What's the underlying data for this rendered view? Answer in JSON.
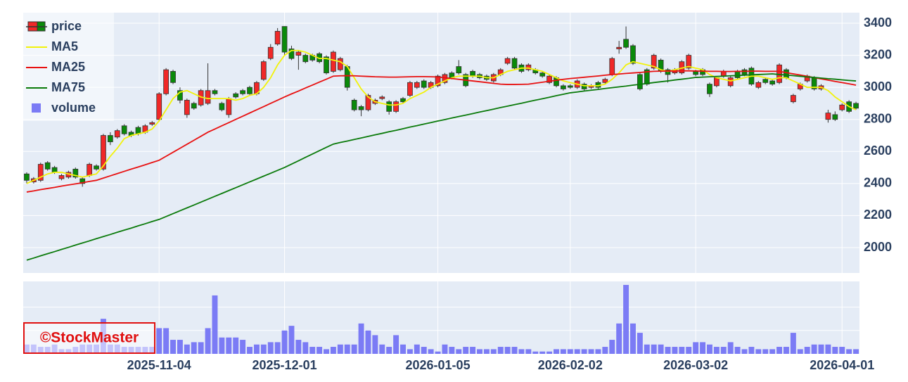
{
  "chart_data": {
    "type": "candlestick",
    "x": [
      "2025-10-06",
      "2025-10-07",
      "2025-10-08",
      "2025-10-09",
      "2025-10-10",
      "2025-10-14",
      "2025-10-15",
      "2025-10-16",
      "2025-10-17",
      "2025-10-20",
      "2025-10-21",
      "2025-10-22",
      "2025-10-23",
      "2025-10-24",
      "2025-10-27",
      "2025-10-28",
      "2025-10-29",
      "2025-10-30",
      "2025-10-31",
      "2025-11-04",
      "2025-11-05",
      "2025-11-06",
      "2025-11-07",
      "2025-11-10",
      "2025-11-11",
      "2025-11-12",
      "2025-11-13",
      "2025-11-14",
      "2025-11-17",
      "2025-11-18",
      "2025-11-19",
      "2025-11-20",
      "2025-11-21",
      "2025-11-25",
      "2025-11-26",
      "2025-11-27",
      "2025-11-28",
      "2025-12-01",
      "2025-12-02",
      "2025-12-03",
      "2025-12-04",
      "2025-12-05",
      "2025-12-08",
      "2025-12-09",
      "2025-12-10",
      "2025-12-11",
      "2025-12-12",
      "2025-12-15",
      "2025-12-16",
      "2025-12-17",
      "2025-12-18",
      "2025-12-19",
      "2025-12-22",
      "2025-12-23",
      "2025-12-24",
      "2025-12-25",
      "2025-12-26",
      "2025-12-29",
      "2025-12-30",
      "2026-01-05",
      "2026-01-06",
      "2026-01-07",
      "2026-01-08",
      "2026-01-09",
      "2026-01-13",
      "2026-01-14",
      "2026-01-15",
      "2026-01-16",
      "2026-01-19",
      "2026-01-20",
      "2026-01-21",
      "2026-01-22",
      "2026-01-23",
      "2026-01-26",
      "2026-01-27",
      "2026-01-28",
      "2026-01-29",
      "2026-01-30",
      "2026-02-02",
      "2026-02-03",
      "2026-02-04",
      "2026-02-05",
      "2026-02-06",
      "2026-02-09",
      "2026-02-10",
      "2026-02-12",
      "2026-02-13",
      "2026-02-16",
      "2026-02-17",
      "2026-02-18",
      "2026-02-19",
      "2026-02-20",
      "2026-02-24",
      "2026-02-25",
      "2026-02-26",
      "2026-02-27",
      "2026-03-02",
      "2026-03-03",
      "2026-03-04",
      "2026-03-05",
      "2026-03-06",
      "2026-03-09",
      "2026-03-10",
      "2026-03-11",
      "2026-03-12",
      "2026-03-13",
      "2026-03-16",
      "2026-03-17",
      "2026-03-18",
      "2026-03-19",
      "2026-03-23",
      "2026-03-24",
      "2026-03-25",
      "2026-03-26",
      "2026-03-27",
      "2026-03-30",
      "2026-03-31",
      "2026-04-01",
      "2026-04-02",
      "2026-04-03"
    ],
    "xticks": [
      "2025-11-04",
      "2025-12-01",
      "2026-01-05",
      "2026-02-02",
      "2026-03-02",
      "2026-04-01"
    ],
    "price": {
      "name": "price",
      "increasing_color": "#f02828",
      "decreasing_color": "#0a8a0a",
      "open": [
        2460,
        2410,
        2420,
        2530,
        2500,
        2430,
        2440,
        2490,
        2430,
        2450,
        2510,
        2490,
        2700,
        2690,
        2760,
        2720,
        2750,
        2720,
        2770,
        2800,
        2960,
        3100,
        2980,
        2830,
        2900,
        2890,
        2900,
        2980,
        2900,
        2830,
        2960,
        2980,
        3000,
        2960,
        3050,
        3180,
        3270,
        3380,
        3240,
        3200,
        3200,
        3200,
        3210,
        3190,
        3100,
        3110,
        3130,
        2920,
        2880,
        2860,
        2900,
        2930,
        2910,
        2850,
        2930,
        2950,
        3000,
        3040,
        3000,
        3010,
        3030,
        3090,
        3130,
        3080,
        3100,
        3080,
        3070,
        3040,
        3080,
        3150,
        3180,
        3140,
        3110,
        3110,
        3090,
        3030,
        3060,
        3010,
        3010,
        3000,
        3020,
        3000,
        3030,
        3030,
        3080,
        3240,
        3300,
        3260,
        3080,
        3110,
        3120,
        3170,
        3110,
        3090,
        3090,
        3120,
        3100,
        3110,
        3020,
        3010,
        3070,
        3010,
        3100,
        3110,
        3120,
        3000,
        3050,
        3040,
        3030,
        3110,
        2910,
        2990,
        3040,
        3060,
        2990,
        2800,
        2830,
        2860,
        2910,
        2900
      ],
      "high": [
        2470,
        2440,
        2530,
        2540,
        2510,
        2460,
        2480,
        2500,
        2440,
        2530,
        2520,
        2710,
        2720,
        2740,
        2770,
        2730,
        2760,
        2770,
        2790,
        2970,
        3120,
        3110,
        3000,
        2930,
        2910,
        2990,
        3150,
        2990,
        2910,
        2940,
        2970,
        2990,
        3010,
        3040,
        3170,
        3270,
        3370,
        3380,
        3260,
        3230,
        3210,
        3210,
        3220,
        3200,
        3230,
        3190,
        3140,
        2930,
        2890,
        2960,
        2930,
        2950,
        2920,
        2920,
        2940,
        3040,
        3040,
        3050,
        3040,
        3080,
        3090,
        3100,
        3170,
        3090,
        3110,
        3090,
        3080,
        3090,
        3120,
        3190,
        3190,
        3150,
        3150,
        3120,
        3100,
        3080,
        3070,
        3020,
        3020,
        3050,
        3030,
        3020,
        3040,
        3060,
        3190,
        3290,
        3380,
        3270,
        3090,
        3120,
        3210,
        3180,
        3120,
        3120,
        3170,
        3210,
        3110,
        3120,
        3030,
        3070,
        3110,
        3070,
        3110,
        3120,
        3130,
        3040,
        3060,
        3050,
        3150,
        3120,
        2960,
        3030,
        3080,
        3070,
        3020,
        2860,
        2850,
        2900,
        2920,
        2910
      ],
      "low": [
        2400,
        2400,
        2410,
        2480,
        2460,
        2420,
        2430,
        2430,
        2380,
        2440,
        2480,
        2480,
        2640,
        2680,
        2700,
        2690,
        2700,
        2710,
        2760,
        2790,
        2950,
        3020,
        2900,
        2810,
        2860,
        2880,
        2890,
        2950,
        2850,
        2810,
        2930,
        2950,
        2950,
        2950,
        3040,
        3170,
        3260,
        3200,
        3170,
        3110,
        3150,
        3160,
        3150,
        3080,
        3090,
        3100,
        2980,
        2850,
        2820,
        2850,
        2890,
        2920,
        2830,
        2840,
        2900,
        2940,
        2990,
        2990,
        2990,
        3000,
        3020,
        3050,
        3080,
        3000,
        3060,
        3050,
        3040,
        3030,
        3070,
        3140,
        3110,
        3090,
        3100,
        3080,
        3060,
        3020,
        3000,
        2980,
        2990,
        2990,
        2980,
        2990,
        2990,
        3020,
        3070,
        3210,
        3240,
        3140,
        2980,
        3010,
        3110,
        3090,
        3030,
        3080,
        3080,
        3110,
        3070,
        3070,
        2940,
        3000,
        3060,
        3000,
        3050,
        3070,
        3010,
        2990,
        3020,
        3010,
        3020,
        3050,
        2900,
        2980,
        3030,
        2980,
        2980,
        2780,
        2790,
        2850,
        2840,
        2860
      ],
      "close": [
        2420,
        2430,
        2520,
        2490,
        2470,
        2450,
        2470,
        2440,
        2400,
        2520,
        2490,
        2700,
        2660,
        2730,
        2710,
        2700,
        2710,
        2760,
        2780,
        2960,
        3110,
        3030,
        2920,
        2920,
        2870,
        2980,
        2980,
        2960,
        2860,
        2930,
        2940,
        2960,
        2960,
        3030,
        3160,
        3250,
        3350,
        3220,
        3180,
        3220,
        3160,
        3170,
        3160,
        3090,
        3220,
        3180,
        3000,
        2860,
        2860,
        2950,
        2920,
        2940,
        2850,
        2910,
        2910,
        3030,
        3030,
        3000,
        3030,
        3070,
        3080,
        3060,
        3090,
        3010,
        3070,
        3060,
        3050,
        3080,
        3110,
        3180,
        3120,
        3100,
        3140,
        3090,
        3070,
        3070,
        3010,
        2990,
        3000,
        3040,
        2990,
        3010,
        3000,
        3050,
        3180,
        3250,
        3250,
        3150,
        2990,
        3020,
        3200,
        3100,
        3080,
        3110,
        3160,
        3200,
        3080,
        3080,
        2960,
        3060,
        3100,
        3060,
        3060,
        3080,
        3020,
        3030,
        3030,
        3020,
        3140,
        3060,
        2950,
        3020,
        3070,
        2990,
        3010,
        2840,
        2800,
        2890,
        2850,
        2870
      ]
    },
    "series": [
      {
        "name": "MA5",
        "color": "#f2f20a",
        "values": [
          2400,
          2420,
          2440,
          2460,
          2470,
          2470,
          2460,
          2450,
          2440,
          2450,
          2460,
          2510,
          2570,
          2620,
          2680,
          2700,
          2710,
          2720,
          2740,
          2790,
          2860,
          2930,
          2970,
          2980,
          2960,
          2940,
          2930,
          2930,
          2930,
          2930,
          2920,
          2930,
          2950,
          2960,
          3000,
          3060,
          3140,
          3200,
          3230,
          3230,
          3220,
          3200,
          3180,
          3180,
          3170,
          3160,
          3130,
          3060,
          2990,
          2940,
          2910,
          2900,
          2890,
          2890,
          2900,
          2930,
          2950,
          2970,
          3000,
          3020,
          3040,
          3060,
          3070,
          3070,
          3070,
          3070,
          3060,
          3060,
          3080,
          3100,
          3110,
          3120,
          3120,
          3110,
          3100,
          3080,
          3060,
          3040,
          3030,
          3020,
          3010,
          3010,
          3010,
          3020,
          3050,
          3090,
          3140,
          3160,
          3150,
          3140,
          3130,
          3110,
          3100,
          3110,
          3120,
          3130,
          3120,
          3110,
          3080,
          3060,
          3050,
          3040,
          3050,
          3060,
          3070,
          3070,
          3060,
          3050,
          3060,
          3060,
          3040,
          3020,
          3000,
          3000,
          3000,
          2980,
          2940,
          2910,
          2880,
          2860
        ]
      },
      {
        "name": "MA25",
        "color": "#e81010",
        "values": [
          2347,
          2354,
          2362,
          2369,
          2376,
          2384,
          2391,
          2398,
          2405,
          2413,
          2420,
          2434,
          2448,
          2462,
          2476,
          2490,
          2503,
          2517,
          2531,
          2545,
          2570,
          2595,
          2620,
          2645,
          2670,
          2695,
          2720,
          2740,
          2760,
          2780,
          2800,
          2820,
          2840,
          2860,
          2880,
          2900,
          2920,
          2940,
          2959,
          2977,
          2996,
          3014,
          3033,
          3051,
          3070,
          3072,
          3073,
          3072,
          3070,
          3068,
          3066,
          3065,
          3064,
          3064,
          3065,
          3066,
          3067,
          3067,
          3066,
          3065,
          3060,
          3055,
          3050,
          3045,
          3040,
          3035,
          3030,
          3025,
          3020,
          3018,
          3018,
          3019,
          3020,
          3026,
          3032,
          3038,
          3044,
          3050,
          3055,
          3059,
          3063,
          3067,
          3071,
          3076,
          3080,
          3083,
          3087,
          3090,
          3093,
          3097,
          3100,
          3101,
          3102,
          3102,
          3103,
          3103,
          3102,
          3101,
          3100,
          3100,
          3099,
          3099,
          3100,
          3100,
          3101,
          3101,
          3100,
          3100,
          3100,
          3092,
          3084,
          3077,
          3069,
          3061,
          3053,
          3045,
          3037,
          3030,
          3022,
          3014
        ]
      },
      {
        "name": "MA75",
        "color": "#0a7a0a",
        "values": [
          1922,
          1935,
          1949,
          1962,
          1975,
          1989,
          2002,
          2016,
          2029,
          2042,
          2056,
          2069,
          2082,
          2096,
          2109,
          2122,
          2136,
          2149,
          2163,
          2176,
          2194,
          2212,
          2230,
          2248,
          2266,
          2284,
          2302,
          2320,
          2338,
          2356,
          2374,
          2392,
          2410,
          2428,
          2446,
          2464,
          2482,
          2500,
          2521,
          2542,
          2563,
          2584,
          2605,
          2626,
          2646,
          2656,
          2665,
          2675,
          2684,
          2694,
          2704,
          2713,
          2723,
          2732,
          2742,
          2752,
          2761,
          2771,
          2780,
          2790,
          2799,
          2809,
          2818,
          2827,
          2836,
          2846,
          2855,
          2864,
          2874,
          2883,
          2892,
          2901,
          2911,
          2920,
          2929,
          2938,
          2948,
          2957,
          2966,
          2971,
          2977,
          2982,
          2987,
          2993,
          2998,
          3003,
          3008,
          3014,
          3019,
          3024,
          3030,
          3035,
          3040,
          3046,
          3051,
          3056,
          3062,
          3064,
          3066,
          3068,
          3070,
          3072,
          3074,
          3076,
          3078,
          3080,
          3082,
          3084,
          3080,
          3077,
          3073,
          3069,
          3065,
          3062,
          3058,
          3054,
          3051,
          3047,
          3043,
          3040
        ]
      }
    ],
    "volume": {
      "name": "volume",
      "color": "#7b7bf5",
      "ylim": [
        0,
        3.1
      ],
      "gridlines": [
        1,
        2
      ],
      "values": [
        0.4,
        0.4,
        0.3,
        0.3,
        0.4,
        0.2,
        0.2,
        0.3,
        0.4,
        0.4,
        0.4,
        1.5,
        0.4,
        0.4,
        0.3,
        0.3,
        0.3,
        0.3,
        0.3,
        1.1,
        1.1,
        0.6,
        0.6,
        0.4,
        0.5,
        0.5,
        1.1,
        2.5,
        0.7,
        0.7,
        0.7,
        0.6,
        0.3,
        0.4,
        0.4,
        0.5,
        0.5,
        1.0,
        1.2,
        0.6,
        0.5,
        0.3,
        0.3,
        0.2,
        0.3,
        0.4,
        0.4,
        0.4,
        1.3,
        1.0,
        0.8,
        0.4,
        0.3,
        0.8,
        0.4,
        0.2,
        0.4,
        0.3,
        0.2,
        0.1,
        0.4,
        0.3,
        0.2,
        0.3,
        0.3,
        0.2,
        0.2,
        0.2,
        0.3,
        0.3,
        0.3,
        0.2,
        0.2,
        0.1,
        0.1,
        0.1,
        0.2,
        0.2,
        0.2,
        0.2,
        0.2,
        0.2,
        0.2,
        0.3,
        0.6,
        1.3,
        2.95,
        1.3,
        0.9,
        0.4,
        0.4,
        0.4,
        0.3,
        0.3,
        0.3,
        0.3,
        0.5,
        0.5,
        0.4,
        0.3,
        0.3,
        0.5,
        0.3,
        0.2,
        0.3,
        0.2,
        0.2,
        0.2,
        0.3,
        0.3,
        0.9,
        0.2,
        0.3,
        0.4,
        0.4,
        0.4,
        0.3,
        0.3,
        0.2,
        0.2
      ]
    },
    "ylim": [
      1842,
      3466
    ],
    "yticks": [
      2000,
      2200,
      2400,
      2600,
      2800,
      3000,
      3200,
      3400
    ],
    "grid": true,
    "legend": "top-left",
    "watermark": "©StockMaster"
  }
}
